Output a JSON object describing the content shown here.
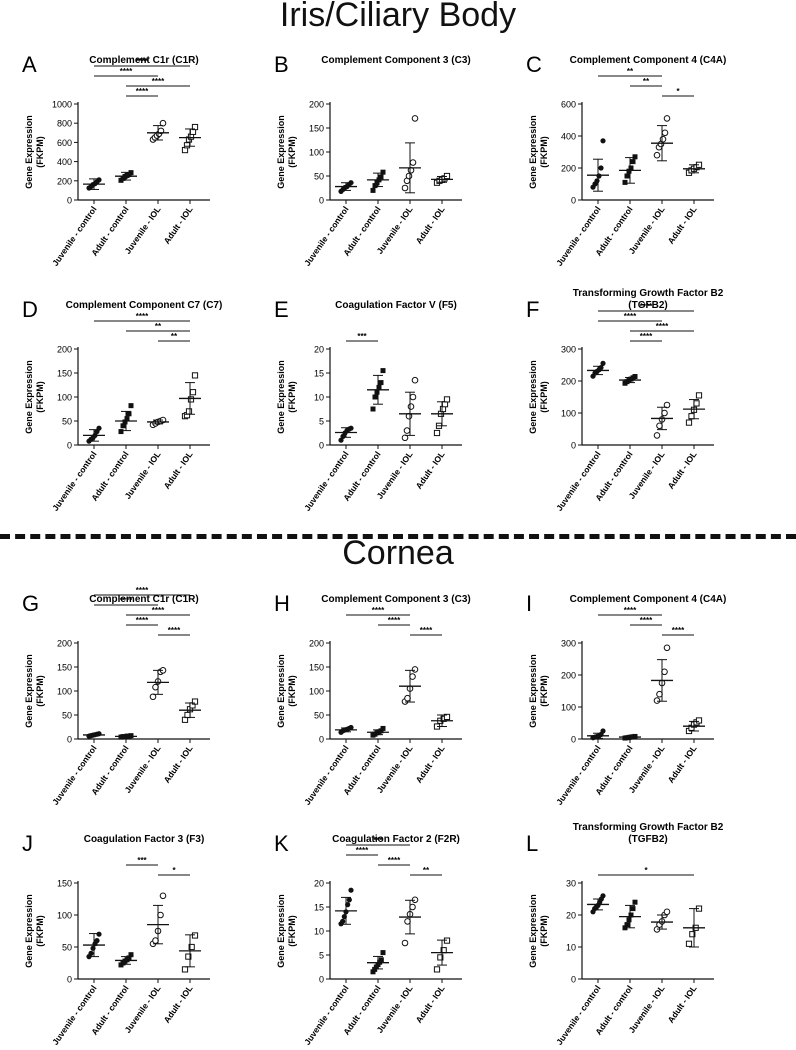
{
  "sections": [
    {
      "title": "Iris/Ciliary Body"
    },
    {
      "title": "Cornea"
    }
  ],
  "common": {
    "ylabel_line1": "Gene Expression",
    "ylabel_line2": "(FKPM)",
    "categories": [
      "Juvenile - control",
      "Adult - control",
      "Juvenile - IOL",
      "Adult - IOL"
    ],
    "markers": [
      "filled-circle",
      "filled-square",
      "open-circle",
      "open-square"
    ]
  },
  "chart_data": [
    {
      "letter": "A",
      "type": "scatter",
      "title": [
        "Complement C1r (C1R)"
      ],
      "ylim": [
        0,
        1000
      ],
      "yticks": [
        0,
        200,
        400,
        600,
        800,
        1000
      ],
      "points": [
        [
          125,
          140,
          160,
          170,
          190,
          210
        ],
        [
          205,
          225,
          245,
          255,
          265,
          285
        ],
        [
          630,
          650,
          670,
          690,
          720,
          800
        ],
        [
          520,
          570,
          630,
          660,
          710,
          760
        ]
      ],
      "mean": [
        165,
        248,
        700,
        650
      ],
      "sd": [
        55,
        40,
        75,
        90
      ],
      "sig": [
        {
          "a": 0,
          "b": 3,
          "label": "****"
        },
        {
          "a": 0,
          "b": 2,
          "label": "****"
        },
        {
          "a": 1,
          "b": 3,
          "label": "****"
        },
        {
          "a": 1,
          "b": 2,
          "label": "****"
        }
      ]
    },
    {
      "letter": "B",
      "type": "scatter",
      "title": [
        "Complement Component 3 (C3)"
      ],
      "ylim": [
        0,
        200
      ],
      "yticks": [
        0,
        50,
        100,
        150,
        200
      ],
      "points": [
        [
          18,
          22,
          26,
          28,
          32,
          36
        ],
        [
          20,
          30,
          36,
          42,
          48,
          58
        ],
        [
          25,
          40,
          50,
          62,
          78,
          170
        ],
        [
          36,
          40,
          42,
          45,
          50
        ]
      ],
      "mean": [
        28,
        42,
        67,
        43
      ],
      "sd": [
        8,
        14,
        52,
        6
      ],
      "sig": []
    },
    {
      "letter": "C",
      "type": "scatter",
      "title": [
        "Complement Component 4 (C4A)"
      ],
      "ylim": [
        0,
        600
      ],
      "yticks": [
        0,
        200,
        400,
        600
      ],
      "points": [
        [
          80,
          100,
          120,
          150,
          200,
          370
        ],
        [
          110,
          150,
          180,
          200,
          240,
          270
        ],
        [
          280,
          330,
          350,
          380,
          420,
          510
        ],
        [
          170,
          185,
          195,
          205,
          220
        ]
      ],
      "mean": [
        155,
        185,
        355,
        195
      ],
      "sd": [
        100,
        80,
        110,
        25
      ],
      "sig": [
        {
          "a": 0,
          "b": 2,
          "label": "**"
        },
        {
          "a": 1,
          "b": 2,
          "label": "**"
        },
        {
          "a": 2,
          "b": 3,
          "label": "*"
        }
      ]
    },
    {
      "letter": "D",
      "type": "scatter",
      "title": [
        "Complement Component C7 (C7)"
      ],
      "ylim": [
        0,
        200
      ],
      "yticks": [
        0,
        50,
        100,
        150,
        200
      ],
      "points": [
        [
          8,
          12,
          15,
          20,
          28,
          35
        ],
        [
          28,
          40,
          48,
          55,
          65,
          82
        ],
        [
          42,
          45,
          48,
          50,
          52
        ],
        [
          60,
          62,
          70,
          95,
          110,
          145
        ]
      ],
      "mean": [
        20,
        50,
        48,
        97
      ],
      "sd": [
        12,
        20,
        4,
        33
      ],
      "sig": [
        {
          "a": 0,
          "b": 3,
          "label": "****"
        },
        {
          "a": 1,
          "b": 3,
          "label": "**"
        },
        {
          "a": 2,
          "b": 3,
          "label": "**"
        }
      ]
    },
    {
      "letter": "E",
      "type": "scatter",
      "title": [
        "Coagulation Factor V (F5)"
      ],
      "ylim": [
        0,
        20
      ],
      "yticks": [
        0,
        5,
        10,
        15,
        20
      ],
      "points": [
        [
          1,
          1.8,
          2.5,
          3,
          3.3,
          3.5
        ],
        [
          7.5,
          10,
          11,
          12,
          13,
          15.5
        ],
        [
          1.5,
          3,
          6,
          8,
          10,
          13.5
        ],
        [
          2.5,
          4,
          6.5,
          7.5,
          8.5,
          9.5
        ]
      ],
      "mean": [
        2.6,
        11.5,
        6.5,
        6.5
      ],
      "sd": [
        1,
        3,
        4.5,
        2.5
      ],
      "sig": [
        {
          "a": 0,
          "b": 1,
          "label": "***"
        }
      ]
    },
    {
      "letter": "F",
      "type": "scatter",
      "title": [
        "Transforming Growth Factor B2",
        "(TGFB2)"
      ],
      "ylim": [
        0,
        300
      ],
      "yticks": [
        0,
        100,
        200,
        300
      ],
      "points": [
        [
          215,
          225,
          230,
          235,
          242,
          255
        ],
        [
          193,
          198,
          203,
          206,
          210,
          214
        ],
        [
          30,
          60,
          80,
          100,
          125
        ],
        [
          70,
          90,
          110,
          130,
          155
        ]
      ],
      "mean": [
        233,
        203,
        83,
        112
      ],
      "sd": [
        13,
        8,
        35,
        30
      ],
      "sig": [
        {
          "a": 0,
          "b": 3,
          "label": "****"
        },
        {
          "a": 0,
          "b": 2,
          "label": "****"
        },
        {
          "a": 1,
          "b": 3,
          "label": "****"
        },
        {
          "a": 1,
          "b": 2,
          "label": "****"
        }
      ]
    },
    {
      "letter": "G",
      "type": "scatter",
      "title": [
        "Complement C1r (C1R)"
      ],
      "ylim": [
        0,
        200
      ],
      "yticks": [
        0,
        50,
        100,
        150,
        200
      ],
      "points": [
        [
          6,
          7,
          8,
          9,
          10,
          11
        ],
        [
          4,
          5,
          5,
          6,
          6,
          7
        ],
        [
          88,
          108,
          120,
          140,
          143
        ],
        [
          40,
          50,
          62,
          70,
          78
        ]
      ],
      "mean": [
        8.5,
        5.5,
        118,
        60
      ],
      "sd": [
        2,
        1,
        25,
        15
      ],
      "sig": [
        {
          "a": 0,
          "b": 3,
          "label": "****"
        },
        {
          "a": 0,
          "b": 2,
          "label": "****"
        },
        {
          "a": 1,
          "b": 3,
          "label": "****"
        },
        {
          "a": 1,
          "b": 2,
          "label": "****"
        },
        {
          "a": 2,
          "b": 3,
          "label": "****"
        }
      ]
    },
    {
      "letter": "H",
      "type": "scatter",
      "title": [
        "Complement Component 3 (C3)"
      ],
      "ylim": [
        0,
        200
      ],
      "yticks": [
        0,
        50,
        100,
        150,
        200
      ],
      "points": [
        [
          14,
          17,
          19,
          20,
          22,
          24
        ],
        [
          8,
          10,
          13,
          15,
          17,
          22
        ],
        [
          78,
          85,
          105,
          130,
          145
        ],
        [
          26,
          38,
          42,
          46
        ]
      ],
      "mean": [
        19,
        14,
        110,
        38
      ],
      "sd": [
        4,
        5,
        33,
        12
      ],
      "sig": [
        {
          "a": 0,
          "b": 2,
          "label": "****"
        },
        {
          "a": 1,
          "b": 2,
          "label": "****"
        },
        {
          "a": 2,
          "b": 3,
          "label": "****"
        }
      ]
    },
    {
      "letter": "I",
      "type": "scatter",
      "title": [
        "Complement Component 4 (C4A)"
      ],
      "ylim": [
        0,
        300
      ],
      "yticks": [
        0,
        100,
        200,
        300
      ],
      "points": [
        [
          4,
          6,
          8,
          10,
          14,
          25
        ],
        [
          3,
          4,
          5,
          6,
          7,
          8
        ],
        [
          120,
          140,
          175,
          210,
          285
        ],
        [
          25,
          35,
          45,
          52,
          58
        ]
      ],
      "mean": [
        10,
        6,
        183,
        40
      ],
      "sd": [
        8,
        2,
        65,
        15
      ],
      "sig": [
        {
          "a": 0,
          "b": 2,
          "label": "****"
        },
        {
          "a": 1,
          "b": 2,
          "label": "****"
        },
        {
          "a": 2,
          "b": 3,
          "label": "****"
        }
      ]
    },
    {
      "letter": "J",
      "type": "scatter",
      "title": [
        "Coagulation Factor 3 (F3)"
      ],
      "ylim": [
        0,
        150
      ],
      "yticks": [
        0,
        50,
        100,
        150
      ],
      "points": [
        [
          35,
          40,
          48,
          55,
          60,
          70
        ],
        [
          22,
          25,
          28,
          30,
          33,
          38
        ],
        [
          55,
          60,
          75,
          100,
          130
        ],
        [
          15,
          35,
          50,
          68
        ]
      ],
      "mean": [
        53,
        29,
        85,
        44
      ],
      "sd": [
        18,
        6,
        30,
        25
      ],
      "sig": [
        {
          "a": 1,
          "b": 2,
          "label": "***"
        },
        {
          "a": 2,
          "b": 3,
          "label": "*"
        }
      ]
    },
    {
      "letter": "K",
      "type": "scatter",
      "title": [
        "Coagulation Factor 2 (F2R)"
      ],
      "ylim": [
        0,
        20
      ],
      "yticks": [
        0,
        5,
        10,
        15,
        20
      ],
      "points": [
        [
          11.5,
          12,
          13,
          14,
          15.5,
          16.5,
          18.5
        ],
        [
          1.5,
          2,
          2.5,
          3,
          3.5,
          4,
          5.5
        ],
        [
          7.5,
          12,
          13.5,
          15,
          16.5
        ],
        [
          2,
          4.5,
          6,
          8
        ]
      ],
      "mean": [
        14.2,
        3.4,
        12.9,
        5.5
      ],
      "sd": [
        2.8,
        1.3,
        3.5,
        2.6
      ],
      "sig": [
        {
          "a": 0,
          "b": 2,
          "label": "***"
        },
        {
          "a": 0,
          "b": 1,
          "label": "****"
        },
        {
          "a": 1,
          "b": 2,
          "label": "****"
        },
        {
          "a": 2,
          "b": 3,
          "label": "**"
        }
      ]
    },
    {
      "letter": "L",
      "type": "scatter",
      "title": [
        "Transforming Growth Factor B2",
        "(TGFB2)"
      ],
      "ylim": [
        0,
        30
      ],
      "yticks": [
        0,
        10,
        20,
        30
      ],
      "points": [
        [
          21,
          22,
          22.5,
          23,
          24,
          25,
          26
        ],
        [
          16,
          17,
          18.5,
          20,
          22,
          24
        ],
        [
          15.5,
          17,
          18,
          20,
          21
        ],
        [
          11,
          14,
          16,
          22
        ]
      ],
      "mean": [
        23.3,
        19.5,
        17.8,
        16
      ],
      "sd": [
        1.7,
        3.5,
        2.2,
        6
      ],
      "sig": [
        {
          "a": 0,
          "b": 3,
          "label": "*"
        }
      ]
    }
  ]
}
